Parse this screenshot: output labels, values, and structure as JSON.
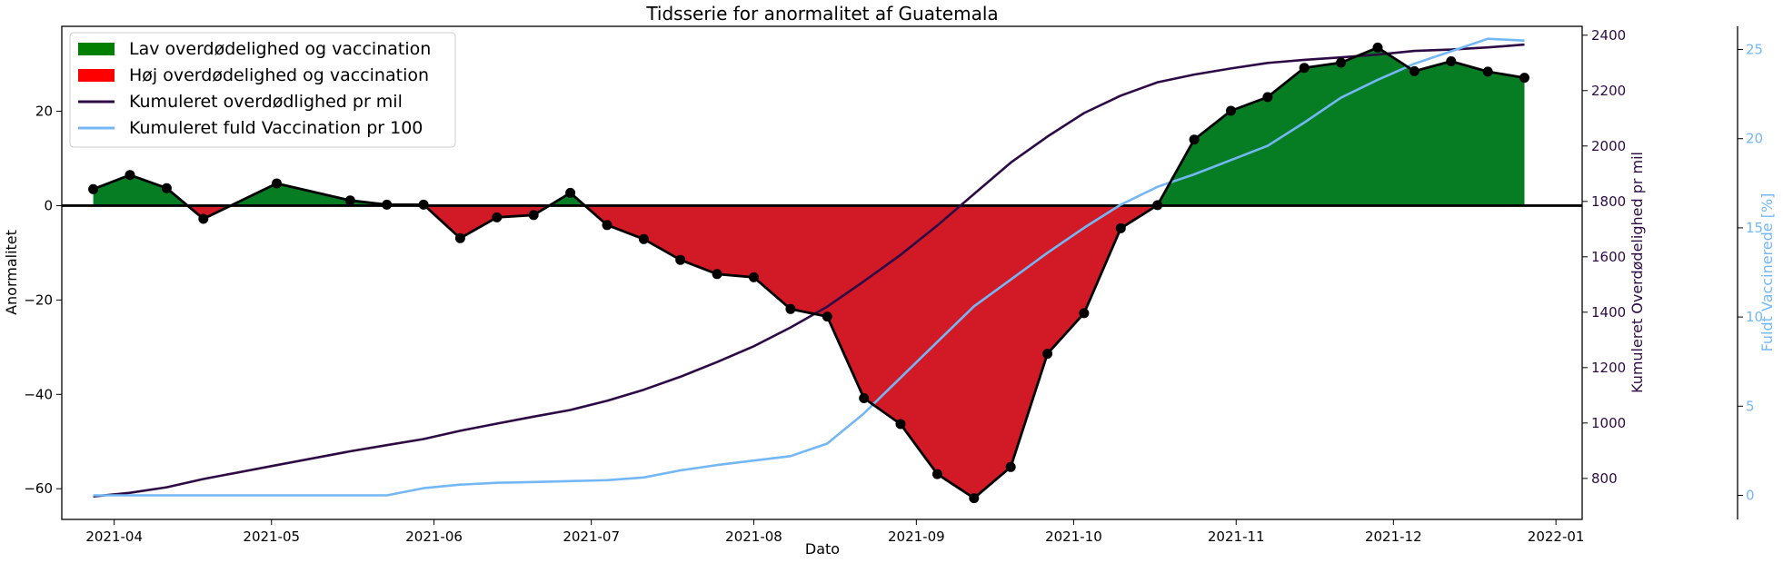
{
  "chart_data": {
    "type": "area",
    "title": "Tidsserie for anormalitet af Guatemala",
    "xlabel": "Dato",
    "ylabel": "Anormalitet",
    "ylabel_right": "Kumuleret Overdødelighed pr mil",
    "ylabel_right2": "Fuldt Vaccinerede [%]",
    "xlim": [
      "2021-03-22",
      "2022-01-06"
    ],
    "ylim": [
      -66.5,
      38
    ],
    "ylim_right": [
      652,
      2432
    ],
    "ylim_right2": [
      -1.35,
      26.3
    ],
    "x_ticks": [
      "2021-04",
      "2021-05",
      "2021-06",
      "2021-07",
      "2021-08",
      "2021-09",
      "2021-10",
      "2021-11",
      "2021-12",
      "2022-01"
    ],
    "y_ticks": [
      20,
      0,
      -20,
      -40,
      -60
    ],
    "y_ticks_right": [
      2400,
      2200,
      2000,
      1800,
      1600,
      1400,
      1200,
      1000,
      800
    ],
    "y_ticks_right2": [
      25,
      20,
      15,
      10,
      5,
      0
    ],
    "legend_position": "top-left",
    "colors": {
      "positive_fill": "#077d23",
      "negative_fill": "#d11a26",
      "legend_positive": "#007f00",
      "legend_negative": "#ff0000",
      "anomaly_line": "#000000",
      "cum_excess": "#2e0a45",
      "vaccination": "#74b7f5"
    },
    "series": [
      {
        "name": "Lav overdødelighed og vaccination",
        "kind": "fill_positive"
      },
      {
        "name": "Høj overdødelighed og vaccination",
        "kind": "fill_negative"
      },
      {
        "name": "Anormalitet",
        "axis": "left",
        "x": [
          "2021-03-28",
          "2021-04-04",
          "2021-04-11",
          "2021-04-18",
          "2021-05-02",
          "2021-05-16",
          "2021-05-23",
          "2021-05-30",
          "2021-06-06",
          "2021-06-13",
          "2021-06-20",
          "2021-06-27",
          "2021-07-04",
          "2021-07-11",
          "2021-07-18",
          "2021-07-25",
          "2021-08-01",
          "2021-08-08",
          "2021-08-15",
          "2021-08-22",
          "2021-08-29",
          "2021-09-05",
          "2021-09-12",
          "2021-09-19",
          "2021-09-26",
          "2021-10-03",
          "2021-10-10",
          "2021-10-17",
          "2021-10-24",
          "2021-10-31",
          "2021-11-07",
          "2021-11-14",
          "2021-11-21",
          "2021-11-28",
          "2021-12-05",
          "2021-12-12",
          "2021-12-19",
          "2021-12-26"
        ],
        "y": [
          3.5,
          6.5,
          3.7,
          -2.8,
          4.7,
          1.1,
          0.2,
          0.2,
          -6.9,
          -2.5,
          -2.0,
          2.7,
          -4.1,
          -7.1,
          -11.5,
          -14.5,
          -15.2,
          -21.9,
          -23.5,
          -40.8,
          -46.3,
          -56.9,
          -62.0,
          -55.4,
          -31.4,
          -22.8,
          -4.8,
          0.1,
          14.0,
          20.1,
          23.0,
          29.2,
          30.3,
          33.5,
          28.5,
          30.6,
          28.4,
          27.1
        ]
      },
      {
        "name": "Kumuleret overdødlighed pr mil",
        "axis": "right",
        "x": [
          "2021-03-28",
          "2021-04-04",
          "2021-04-11",
          "2021-04-18",
          "2021-05-02",
          "2021-05-16",
          "2021-05-23",
          "2021-05-30",
          "2021-06-06",
          "2021-06-13",
          "2021-06-20",
          "2021-06-27",
          "2021-07-04",
          "2021-07-11",
          "2021-07-18",
          "2021-07-25",
          "2021-08-01",
          "2021-08-08",
          "2021-08-15",
          "2021-08-22",
          "2021-08-29",
          "2021-09-05",
          "2021-09-12",
          "2021-09-19",
          "2021-09-26",
          "2021-10-03",
          "2021-10-10",
          "2021-10-17",
          "2021-10-24",
          "2021-10-31",
          "2021-11-07",
          "2021-11-14",
          "2021-11-21",
          "2021-11-28",
          "2021-12-05",
          "2021-12-12",
          "2021-12-19",
          "2021-12-26"
        ],
        "y": [
          735,
          748,
          768,
          798,
          848,
          898,
          920,
          942,
          972,
          998,
          1023,
          1047,
          1080,
          1120,
          1167,
          1220,
          1277,
          1345,
          1420,
          1512,
          1607,
          1713,
          1827,
          1940,
          2034,
          2119,
          2182,
          2230,
          2258,
          2280,
          2300,
          2311,
          2320,
          2330,
          2343,
          2348,
          2356,
          2366
        ]
      },
      {
        "name": "Kumuleret fuld Vaccination pr 100",
        "axis": "right2",
        "x": [
          "2021-03-28",
          "2021-04-04",
          "2021-04-11",
          "2021-04-18",
          "2021-05-02",
          "2021-05-16",
          "2021-05-23",
          "2021-05-30",
          "2021-06-06",
          "2021-06-13",
          "2021-06-20",
          "2021-06-27",
          "2021-07-04",
          "2021-07-11",
          "2021-07-18",
          "2021-07-25",
          "2021-08-01",
          "2021-08-08",
          "2021-08-15",
          "2021-08-22",
          "2021-08-29",
          "2021-09-05",
          "2021-09-12",
          "2021-09-19",
          "2021-09-26",
          "2021-10-03",
          "2021-10-10",
          "2021-10-17",
          "2021-10-24",
          "2021-10-31",
          "2021-11-07",
          "2021-11-14",
          "2021-11-21",
          "2021-11-28",
          "2021-12-05",
          "2021-12-12",
          "2021-12-19",
          "2021-12-26"
        ],
        "y": [
          0.0,
          0.0,
          0.0,
          0.0,
          0.0,
          0.0,
          0.0,
          0.4,
          0.6,
          0.7,
          0.75,
          0.8,
          0.85,
          1.0,
          1.4,
          1.7,
          1.95,
          2.2,
          2.9,
          4.6,
          6.6,
          8.6,
          10.6,
          12.1,
          13.6,
          15.0,
          16.3,
          17.3,
          18.0,
          18.8,
          19.6,
          20.9,
          22.3,
          23.3,
          24.2,
          24.9,
          25.6,
          25.5
        ]
      }
    ]
  }
}
